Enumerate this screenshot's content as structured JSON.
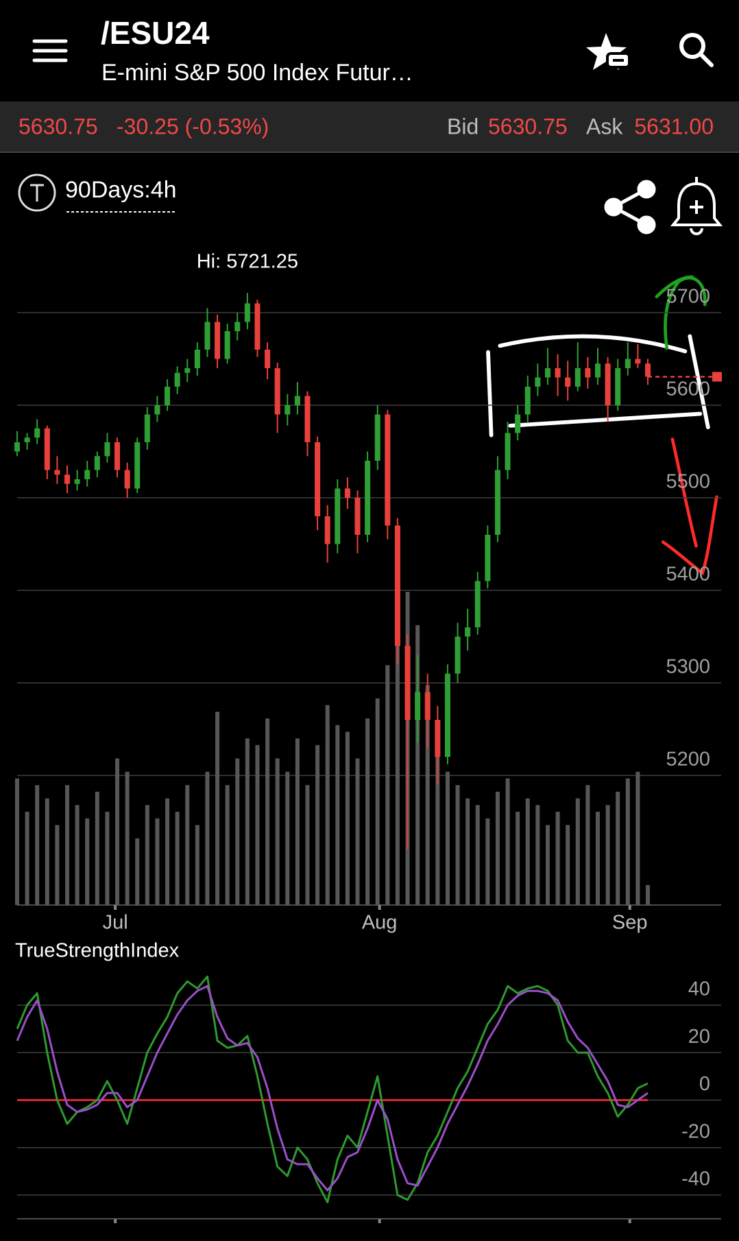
{
  "header": {
    "title": "/ESU24",
    "subtitle": "E-mini S&P 500 Index Futur…"
  },
  "quote": {
    "last": "5630.75",
    "change": "-30.25 (-0.53%)",
    "bid_label": "Bid",
    "bid": "5630.75",
    "ask_label": "Ask",
    "ask": "5631.00"
  },
  "toolbar": {
    "period": "90Days:4h"
  },
  "chart_data": [
    {
      "type": "candlestick",
      "annotation": "Hi: 5721.25",
      "up_color": "#2f9e35",
      "down_color": "#e8413c",
      "volume_color": "#575757",
      "ylim": [
        5060,
        5780
      ],
      "yticks": [
        5200,
        5300,
        5400,
        5500,
        5600,
        5700
      ],
      "grid": true,
      "xlim": [
        0,
        63
      ],
      "xticks": [
        {
          "value": 9.8,
          "label": "Jul"
        },
        {
          "value": 36.2,
          "label": "Aug"
        },
        {
          "value": 61.2,
          "label": "Sep"
        }
      ],
      "ohlc": [
        [
          5550,
          5572,
          5545,
          5560
        ],
        [
          5560,
          5570,
          5552,
          5565
        ],
        [
          5565,
          5585,
          5558,
          5575
        ],
        [
          5575,
          5578,
          5520,
          5530
        ],
        [
          5530,
          5545,
          5515,
          5525
        ],
        [
          5525,
          5535,
          5505,
          5515
        ],
        [
          5515,
          5530,
          5508,
          5520
        ],
        [
          5520,
          5540,
          5512,
          5530
        ],
        [
          5530,
          5550,
          5522,
          5545
        ],
        [
          5545,
          5570,
          5538,
          5560
        ],
        [
          5560,
          5565,
          5522,
          5530
        ],
        [
          5530,
          5538,
          5500,
          5510
        ],
        [
          5510,
          5565,
          5505,
          5560
        ],
        [
          5560,
          5598,
          5552,
          5590
        ],
        [
          5590,
          5610,
          5582,
          5600
        ],
        [
          5600,
          5628,
          5594,
          5620
        ],
        [
          5620,
          5642,
          5612,
          5635
        ],
        [
          5635,
          5650,
          5625,
          5640
        ],
        [
          5640,
          5668,
          5632,
          5660
        ],
        [
          5660,
          5705,
          5652,
          5690
        ],
        [
          5690,
          5698,
          5640,
          5650
        ],
        [
          5650,
          5688,
          5645,
          5680
        ],
        [
          5680,
          5700,
          5670,
          5690
        ],
        [
          5690,
          5721.25,
          5682,
          5710
        ],
        [
          5710,
          5714,
          5652,
          5660
        ],
        [
          5660,
          5668,
          5628,
          5640
        ],
        [
          5640,
          5646,
          5570,
          5590
        ],
        [
          5590,
          5612,
          5578,
          5600
        ],
        [
          5600,
          5625,
          5590,
          5610
        ],
        [
          5610,
          5615,
          5545,
          5560
        ],
        [
          5560,
          5566,
          5465,
          5480
        ],
        [
          5480,
          5492,
          5430,
          5450
        ],
        [
          5450,
          5520,
          5440,
          5510
        ],
        [
          5510,
          5522,
          5488,
          5500
        ],
        [
          5500,
          5508,
          5440,
          5460
        ],
        [
          5460,
          5550,
          5452,
          5540
        ],
        [
          5540,
          5600,
          5530,
          5590
        ],
        [
          5590,
          5595,
          5455,
          5470
        ],
        [
          5470,
          5478,
          5320,
          5340
        ],
        [
          5340,
          5352,
          5120,
          5260
        ],
        [
          5260,
          5330,
          5235,
          5290
        ],
        [
          5290,
          5310,
          5230,
          5260
        ],
        [
          5260,
          5275,
          5190,
          5220
        ],
        [
          5220,
          5320,
          5212,
          5310
        ],
        [
          5310,
          5365,
          5300,
          5350
        ],
        [
          5350,
          5380,
          5335,
          5360
        ],
        [
          5360,
          5420,
          5352,
          5410
        ],
        [
          5410,
          5470,
          5402,
          5460
        ],
        [
          5460,
          5545,
          5452,
          5530
        ],
        [
          5530,
          5582,
          5520,
          5570
        ],
        [
          5570,
          5600,
          5562,
          5590
        ],
        [
          5590,
          5632,
          5582,
          5620
        ],
        [
          5620,
          5645,
          5610,
          5630
        ],
        [
          5630,
          5662,
          5622,
          5640
        ],
        [
          5640,
          5655,
          5610,
          5630
        ],
        [
          5630,
          5648,
          5605,
          5620
        ],
        [
          5620,
          5668,
          5615,
          5640
        ],
        [
          5640,
          5652,
          5618,
          5630
        ],
        [
          5630,
          5662,
          5622,
          5645
        ],
        [
          5645,
          5652,
          5582,
          5600
        ],
        [
          5600,
          5650,
          5594,
          5640
        ],
        [
          5640,
          5668,
          5632,
          5650
        ],
        [
          5650,
          5666,
          5640,
          5645
        ],
        [
          5645,
          5650,
          5622,
          5630.75
        ]
      ],
      "volume_lim": [
        0,
        100
      ],
      "volume": [
        19,
        14,
        18,
        16,
        12,
        18,
        15,
        13,
        17,
        14,
        22,
        20,
        10,
        15,
        13,
        16,
        14,
        18,
        12,
        20,
        29,
        18,
        22,
        25,
        24,
        28,
        22,
        20,
        25,
        18,
        24,
        30,
        27,
        26,
        22,
        28,
        31,
        36,
        40,
        47,
        42,
        33,
        27,
        20,
        18,
        16,
        15,
        13,
        17,
        19,
        14,
        16,
        15,
        12,
        14,
        12,
        16,
        18,
        14,
        15,
        17,
        19,
        20,
        3
      ]
    },
    {
      "type": "line",
      "title": "TrueStrengthIndex",
      "ylim": [
        -50,
        55
      ],
      "yticks": [
        -40,
        -20,
        0,
        20,
        40
      ],
      "grid": true,
      "zero_color": "#e0242a",
      "xlim": [
        0,
        63
      ],
      "series": [
        {
          "color": "#2f9a2f",
          "values": [
            30,
            40,
            45,
            20,
            0,
            -10,
            -5,
            -3,
            0,
            8,
            0,
            -10,
            5,
            20,
            28,
            35,
            45,
            50,
            47,
            52,
            25,
            22,
            23,
            27,
            10,
            -10,
            -28,
            -32,
            -20,
            -25,
            -35,
            -43,
            -25,
            -15,
            -20,
            -5,
            10,
            -15,
            -40,
            -42,
            -35,
            -22,
            -15,
            -5,
            5,
            12,
            22,
            32,
            38,
            48,
            45,
            47,
            48,
            46,
            40,
            25,
            20,
            20,
            10,
            3,
            -7,
            -2,
            5,
            7
          ]
        },
        {
          "color": "#9b4fc9",
          "values": [
            25,
            35,
            42,
            30,
            12,
            -2,
            -5,
            -4,
            -2,
            3,
            3,
            -3,
            0,
            10,
            20,
            28,
            36,
            42,
            46,
            48,
            35,
            26,
            23,
            24,
            18,
            5,
            -12,
            -25,
            -27,
            -27,
            -33,
            -38,
            -33,
            -24,
            -22,
            -12,
            0,
            -8,
            -25,
            -35,
            -36,
            -28,
            -20,
            -10,
            -2,
            6,
            15,
            25,
            32,
            40,
            44,
            46,
            46,
            45,
            42,
            33,
            26,
            22,
            15,
            8,
            -2,
            -3,
            0,
            3
          ]
        }
      ]
    }
  ]
}
